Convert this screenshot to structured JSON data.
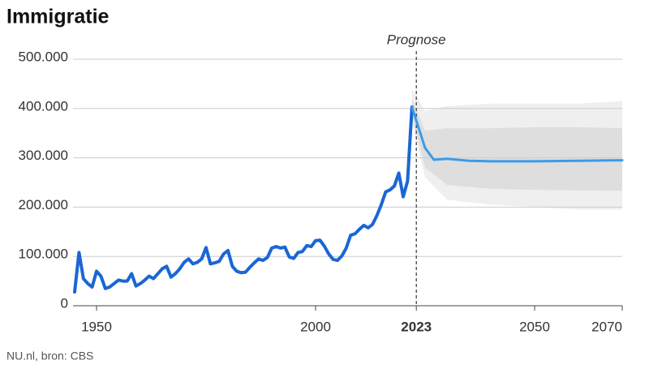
{
  "chart_data": {
    "type": "line",
    "title": "Immigratie",
    "annotation": "Prognose",
    "source": "NU.nl, bron: CBS",
    "forecast_start": 2023,
    "xlim": [
      1945,
      2070
    ],
    "xticks": [
      1950,
      2000,
      2023,
      2050,
      2070
    ],
    "ylim": [
      0,
      500000
    ],
    "yticks": [
      0,
      {
        "value": 100000,
        "label": "100.000"
      },
      {
        "value": 200000,
        "label": "200.000"
      },
      {
        "value": 300000,
        "label": "300.000"
      },
      {
        "value": 400000,
        "label": "400.000"
      },
      {
        "value": 500000,
        "label": "500.000"
      }
    ],
    "grid": true,
    "bands": [
      {
        "color": "#efefef",
        "x": [
          2022,
          2025,
          2030,
          2040,
          2050,
          2060,
          2070
        ],
        "upper": [
          440000,
          395000,
          405000,
          410000,
          410000,
          410000,
          415000
        ],
        "lower": [
          370000,
          260000,
          215000,
          205000,
          200000,
          195000,
          195000
        ]
      },
      {
        "color": "#dedede",
        "x": [
          2022,
          2025,
          2030,
          2040,
          2050,
          2060,
          2070
        ],
        "upper": [
          420000,
          355000,
          360000,
          360000,
          362000,
          362000,
          360000
        ],
        "lower": [
          385000,
          280000,
          245000,
          237000,
          235000,
          234000,
          233000
        ]
      }
    ],
    "series": [
      {
        "color": "#1a66d6",
        "width": 4,
        "x": [
          1945,
          1946,
          1947,
          1948,
          1949,
          1950,
          1951,
          1952,
          1953,
          1954,
          1955,
          1956,
          1957,
          1958,
          1959,
          1960,
          1961,
          1962,
          1963,
          1964,
          1965,
          1966,
          1967,
          1968,
          1969,
          1970,
          1971,
          1972,
          1973,
          1974,
          1975,
          1976,
          1977,
          1978,
          1979,
          1980,
          1981,
          1982,
          1983,
          1984,
          1985,
          1986,
          1987,
          1988,
          1989,
          1990,
          1991,
          1992,
          1993,
          1994,
          1995,
          1996,
          1997,
          1998,
          1999,
          2000,
          2001,
          2002,
          2003,
          2004,
          2005,
          2006,
          2007,
          2008,
          2009,
          2010,
          2011,
          2012,
          2013,
          2014,
          2015,
          2016,
          2017,
          2018,
          2019,
          2020,
          2021,
          2022
        ],
        "values": [
          28000,
          108000,
          55000,
          45000,
          38000,
          70000,
          60000,
          35000,
          38000,
          45000,
          52000,
          50000,
          50000,
          65000,
          40000,
          45000,
          52000,
          60000,
          55000,
          65000,
          75000,
          80000,
          58000,
          65000,
          75000,
          88000,
          95000,
          85000,
          88000,
          95000,
          118000,
          85000,
          87000,
          90000,
          105000,
          112000,
          80000,
          70000,
          67000,
          68000,
          78000,
          87000,
          95000,
          92000,
          98000,
          117000,
          120000,
          117000,
          119000,
          99000,
          96000,
          108000,
          110000,
          122000,
          120000,
          132000,
          133000,
          121000,
          105000,
          94000,
          92000,
          101000,
          117000,
          143000,
          146000,
          155000,
          163000,
          158000,
          165000,
          183000,
          205000,
          231000,
          235000,
          243000,
          269000,
          221000,
          253000,
          403000
        ]
      },
      {
        "color": "#3b9be8",
        "width": 3,
        "x": [
          2022,
          2025,
          2027,
          2030,
          2035,
          2040,
          2050,
          2060,
          2070
        ],
        "values": [
          403000,
          320000,
          296000,
          298000,
          294000,
          293000,
          293000,
          294000,
          295000
        ]
      }
    ]
  }
}
